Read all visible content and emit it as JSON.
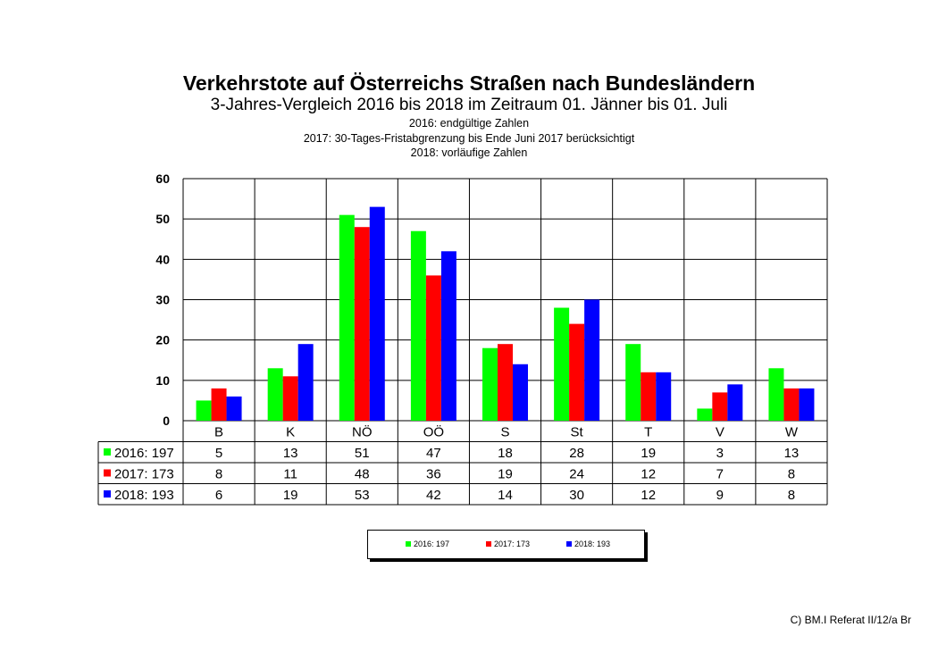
{
  "header": {
    "title": "Verkehrstote auf Österreichs Straßen nach Bundesländern",
    "subtitle": "3-Jahres-Vergleich 2016 bis 2018 im Zeitraum 01. Jänner bis 01. Juli",
    "note1": "2016: endgültige Zahlen",
    "note2": "2017: 30-Tages-Fristabgrenzung bis Ende Juni 2017 berücksichtigt",
    "note3": "2018: vorläufige Zahlen"
  },
  "chart_data": {
    "type": "bar",
    "categories": [
      "B",
      "K",
      "NÖ",
      "OÖ",
      "S",
      "St",
      "T",
      "V",
      "W"
    ],
    "series": [
      {
        "name": "2016: 197",
        "color": "#00ff00",
        "values": [
          5,
          13,
          51,
          47,
          18,
          28,
          19,
          3,
          13
        ]
      },
      {
        "name": "2017: 173",
        "color": "#ff0000",
        "values": [
          8,
          11,
          48,
          36,
          19,
          24,
          12,
          7,
          8
        ]
      },
      {
        "name": "2018: 193",
        "color": "#0000ff",
        "values": [
          6,
          19,
          53,
          42,
          14,
          30,
          12,
          9,
          8
        ]
      }
    ],
    "ylim": [
      0,
      60
    ],
    "yticks": [
      0,
      10,
      20,
      30,
      40,
      50,
      60
    ],
    "grid": true,
    "data_table": true,
    "legend_position": "bottom"
  },
  "legend": {
    "items": [
      {
        "label": "2016: 197",
        "color": "#00ff00"
      },
      {
        "label": "2017: 173",
        "color": "#ff0000"
      },
      {
        "label": "2018: 193",
        "color": "#0000ff"
      }
    ]
  },
  "footer": {
    "copyright": "C) BM.I Referat II/12/a Br"
  }
}
